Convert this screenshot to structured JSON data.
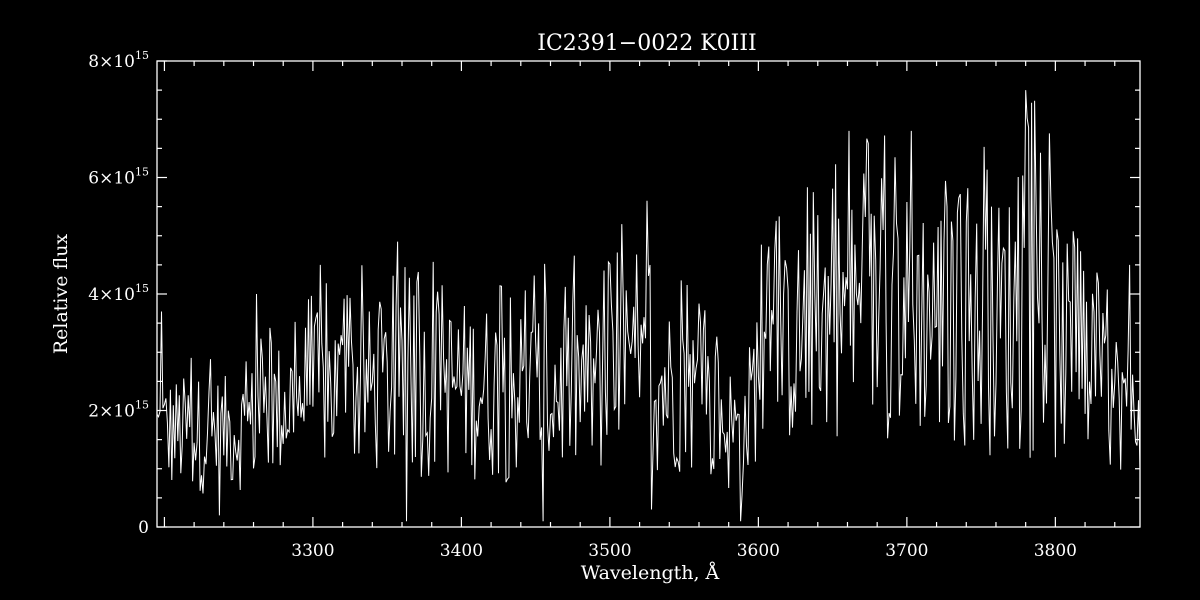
{
  "chart_data": {
    "type": "line",
    "title": "IC2391−0022   K0III",
    "xlabel": "Wavelength, Å",
    "ylabel": "Relative flux",
    "xlim": [
      3195,
      3857
    ],
    "ylim": [
      0,
      8000000000000000.0
    ],
    "x_ticks": [
      {
        "value": 3300,
        "label": "3300"
      },
      {
        "value": 3400,
        "label": "3400"
      },
      {
        "value": 3500,
        "label": "3500"
      },
      {
        "value": 3600,
        "label": "3600"
      },
      {
        "value": 3700,
        "label": "3700"
      },
      {
        "value": 3800,
        "label": "3800"
      }
    ],
    "y_ticks": [
      {
        "value": 0,
        "mantissa": "0",
        "exponent": ""
      },
      {
        "value": 2000000000000000.0,
        "mantissa": "2×10",
        "exponent": "15"
      },
      {
        "value": 4000000000000000.0,
        "mantissa": "4×10",
        "exponent": "15"
      },
      {
        "value": 6000000000000000.0,
        "mantissa": "6×10",
        "exponent": "15"
      },
      {
        "value": 8000000000000000.0,
        "mantissa": "8×10",
        "exponent": "15"
      }
    ],
    "grid": false,
    "series": [
      {
        "x_start": 3195,
        "x_step": 1,
        "envelope_low": [
          {
            "x": 3195,
            "y": 500000000000000.0
          },
          {
            "x": 3250,
            "y": 600000000000000.0
          },
          {
            "x": 3300,
            "y": 900000000000000.0
          },
          {
            "x": 3350,
            "y": 800000000000000.0
          },
          {
            "x": 3400,
            "y": 800000000000000.0
          },
          {
            "x": 3450,
            "y": 700000000000000.0
          },
          {
            "x": 3500,
            "y": 800000000000000.0
          },
          {
            "x": 3550,
            "y": 900000000000000.0
          },
          {
            "x": 3590,
            "y": 400000000000000.0
          },
          {
            "x": 3600,
            "y": 1200000000000000.0
          },
          {
            "x": 3650,
            "y": 1500000000000000.0
          },
          {
            "x": 3700,
            "y": 1500000000000000.0
          },
          {
            "x": 3750,
            "y": 1200000000000000.0
          },
          {
            "x": 3800,
            "y": 1000000000000000.0
          },
          {
            "x": 3857,
            "y": 900000000000000.0
          }
        ],
        "envelope_high": [
          {
            "x": 3195,
            "y": 2600000000000000.0
          },
          {
            "x": 3250,
            "y": 2600000000000000.0
          },
          {
            "x": 3300,
            "y": 3700000000000000.0
          },
          {
            "x": 3350,
            "y": 3800000000000000.0
          },
          {
            "x": 3400,
            "y": 3900000000000000.0
          },
          {
            "x": 3450,
            "y": 3800000000000000.0
          },
          {
            "x": 3500,
            "y": 4000000000000000.0
          },
          {
            "x": 3550,
            "y": 3800000000000000.0
          },
          {
            "x": 3590,
            "y": 2500000000000000.0
          },
          {
            "x": 3600,
            "y": 4200000000000000.0
          },
          {
            "x": 3650,
            "y": 5600000000000000.0
          },
          {
            "x": 3700,
            "y": 5800000000000000.0
          },
          {
            "x": 3750,
            "y": 5500000000000000.0
          },
          {
            "x": 3790,
            "y": 6200000000000000.0
          },
          {
            "x": 3820,
            "y": 4000000000000000.0
          },
          {
            "x": 3857,
            "y": 3000000000000000.0
          }
        ],
        "peaks": [
          {
            "x": 3198,
            "y": 3700000000000000.0
          },
          {
            "x": 3262,
            "y": 4000000000000000.0
          },
          {
            "x": 3305,
            "y": 4500000000000000.0
          },
          {
            "x": 3357,
            "y": 4900000000000000.0
          },
          {
            "x": 3455,
            "y": 5000000000000000.0
          },
          {
            "x": 3508,
            "y": 5200000000000000.0
          },
          {
            "x": 3525,
            "y": 5600000000000000.0
          },
          {
            "x": 3661,
            "y": 6800000000000000.0
          },
          {
            "x": 3703,
            "y": 6800000000000000.0
          },
          {
            "x": 3780,
            "y": 7500000000000000.0
          },
          {
            "x": 3813,
            "y": 4800000000000000.0
          },
          {
            "x": 3850,
            "y": 4500000000000000.0
          }
        ],
        "dips": [
          {
            "x": 3237,
            "y": 200000000000000.0
          },
          {
            "x": 3363,
            "y": 100000000000000.0
          },
          {
            "x": 3455,
            "y": 100000000000000.0
          },
          {
            "x": 3528,
            "y": 300000000000000.0
          },
          {
            "x": 3588,
            "y": 100000000000000.0
          }
        ]
      }
    ]
  }
}
